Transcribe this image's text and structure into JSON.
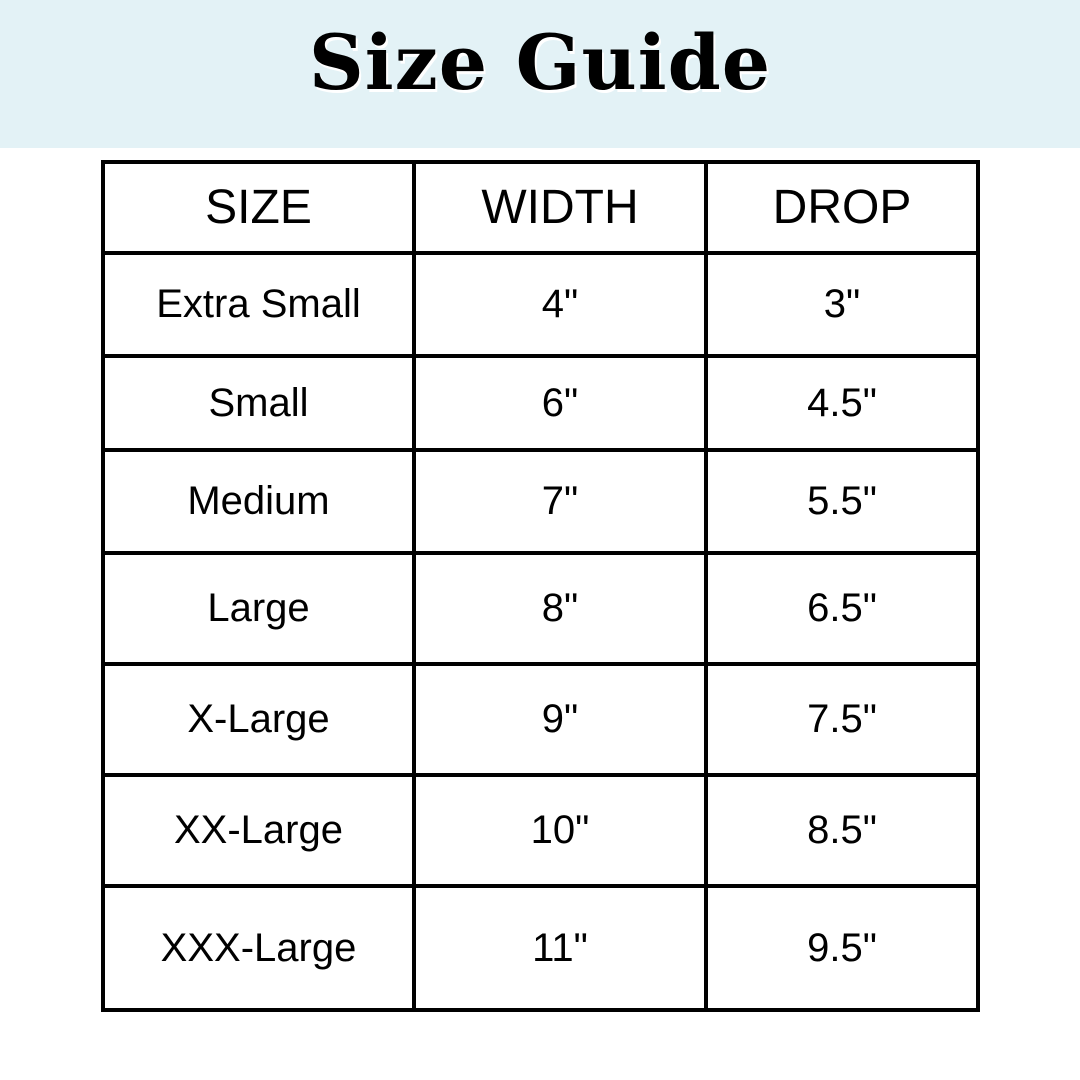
{
  "title": "Size Guide",
  "colors": {
    "banner": "#e3f2f6",
    "border": "#000000"
  },
  "table": {
    "headers": [
      "SIZE",
      "WIDTH",
      "DROP"
    ],
    "rows": [
      [
        "Extra Small",
        "4\"",
        "3\""
      ],
      [
        "Small",
        "6\"",
        "4.5\""
      ],
      [
        "Medium",
        "7\"",
        "5.5\""
      ],
      [
        "Large",
        "8\"",
        "6.5\""
      ],
      [
        "X-Large",
        "9\"",
        "7.5\""
      ],
      [
        "XX-Large",
        "10\"",
        "8.5\""
      ],
      [
        "XXX-Large",
        "11\"",
        "9.5\""
      ]
    ]
  }
}
